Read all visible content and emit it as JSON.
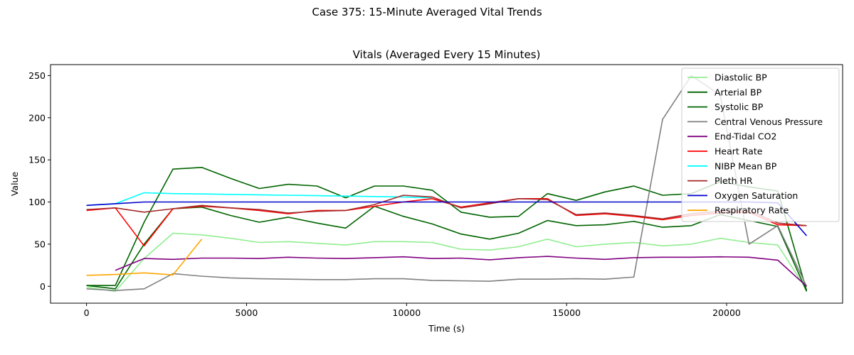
{
  "suptitle": "Case 375: 15-Minute Averaged Vital Trends",
  "chart_data": {
    "type": "line",
    "title": "Vitals (Averaged Every 15 Minutes)",
    "xlabel": "Time (s)",
    "ylabel": "Value",
    "xlim": [
      -1125,
      23625
    ],
    "ylim": [
      -20,
      263
    ],
    "xticks": [
      0,
      5000,
      10000,
      15000,
      20000
    ],
    "yticks": [
      0,
      50,
      100,
      150,
      200,
      250
    ],
    "grid": false,
    "legend": "top-right",
    "series": [
      {
        "name": "Diastolic BP",
        "color": "#90ee90",
        "x": [
          0,
          900,
          1800,
          2700,
          3600,
          4500,
          5400,
          6300,
          7200,
          8100,
          9000,
          9900,
          10800,
          11700,
          12600,
          13500,
          14400,
          15300,
          16200,
          17100,
          18000,
          18900,
          19800,
          20700,
          21600,
          22500
        ],
        "y": [
          -1,
          -6,
          33,
          63,
          61,
          57,
          52,
          53,
          51,
          49,
          53,
          53,
          52,
          44,
          43,
          47,
          56,
          47,
          50,
          52,
          48,
          50,
          57,
          52,
          49,
          -4
        ]
      },
      {
        "name": "Arterial BP",
        "color": "#006400",
        "x": [
          0,
          900,
          1800,
          2700,
          3600,
          4500,
          5400,
          6300,
          7200,
          8100,
          9000,
          9900,
          10800,
          11700,
          12600,
          13500,
          14400,
          15300,
          16200,
          17100,
          18000,
          18900,
          19800,
          20700,
          21600,
          22500
        ],
        "y": [
          1,
          -3,
          50,
          92,
          94,
          84,
          76,
          82,
          75,
          69,
          95,
          83,
          74,
          62,
          56,
          63,
          78,
          72,
          73,
          77,
          70,
          72,
          85,
          78,
          71,
          -6
        ]
      },
      {
        "name": "Systolic BP",
        "color": "#006400",
        "x": [
          0,
          900,
          1800,
          2700,
          3600,
          4500,
          5400,
          6300,
          7200,
          8100,
          9000,
          9900,
          10800,
          11700,
          12600,
          13500,
          14400,
          15300,
          16200,
          17100,
          18000,
          18900,
          19800,
          20700,
          21600,
          22500
        ],
        "y": [
          1,
          1,
          76,
          139,
          141,
          128,
          116,
          121,
          119,
          105,
          119,
          119,
          114,
          88,
          82,
          83,
          110,
          102,
          112,
          119,
          108,
          110,
          124,
          118,
          113,
          -5
        ]
      },
      {
        "name": "Central Venous Pressure",
        "color": "#808080",
        "x": [
          0,
          900,
          1800,
          2700,
          3600,
          4500,
          5400,
          6300,
          7200,
          8100,
          9000,
          9900,
          10800,
          11700,
          12600,
          13500,
          14400,
          15300,
          16200,
          17100,
          18000,
          18900,
          19800,
          20700,
          21600,
          22500
        ],
        "y": [
          -3,
          -5,
          -3,
          15,
          12,
          10,
          9,
          8.5,
          8,
          8,
          9,
          9,
          7,
          6.5,
          6,
          8.5,
          8.5,
          9,
          8.5,
          11,
          198,
          250,
          227,
          50,
          72,
          0
        ]
      },
      {
        "name": "End-Tidal CO2",
        "color": "#800080",
        "x": [
          900,
          1800,
          2700,
          3600,
          4500,
          5400,
          6300,
          7200,
          8100,
          9000,
          9900,
          10800,
          11700,
          12600,
          13500,
          14400,
          15300,
          16200,
          17100,
          18000,
          18900,
          19800,
          20700,
          21600,
          22500
        ],
        "y": [
          19,
          33,
          32,
          33.5,
          33.5,
          33,
          34.5,
          33.5,
          33,
          34,
          35,
          33,
          33.5,
          31.5,
          34,
          35.5,
          33.5,
          32,
          34,
          34.5,
          34.5,
          35,
          34.5,
          31,
          0
        ]
      },
      {
        "name": "Heart Rate",
        "color": "#ff0000",
        "x": [
          0,
          900,
          1800,
          2700,
          3600,
          4500,
          5400,
          6300,
          7200,
          8100,
          9000,
          9900,
          10800,
          11700,
          12600,
          13500,
          14400,
          15300,
          16200,
          17100,
          18000,
          18900,
          19800,
          20700,
          21600,
          22500
        ],
        "y": [
          90,
          93,
          48,
          92,
          95,
          93,
          90,
          86,
          90,
          90,
          95,
          100,
          104,
          94,
          99,
          104,
          104,
          84,
          86,
          83,
          79,
          84,
          87,
          88,
          73,
          72
        ]
      },
      {
        "name": "NIBP Mean BP",
        "color": "#00ffff",
        "x": [
          0,
          900,
          1800,
          2700,
          3600,
          4500,
          5400,
          6300,
          7200,
          8100,
          9000,
          9900,
          10800
        ],
        "y": [
          96,
          98,
          111,
          110,
          109.5,
          109,
          108.5,
          108,
          107.5,
          107,
          106.5,
          106,
          105
        ]
      },
      {
        "name": "Pleth HR",
        "color": "#a52a2a",
        "x": [
          0,
          900,
          1800,
          2700,
          3600,
          4500,
          5400,
          6300,
          7200,
          8100,
          9000,
          9900,
          10800,
          11700,
          12600,
          13500,
          14400,
          15300,
          16200,
          17100,
          18000,
          18900,
          19800,
          20700,
          21600,
          22500
        ],
        "y": [
          91,
          93,
          88,
          92,
          96,
          93,
          91,
          87,
          89,
          90,
          97,
          108,
          106,
          93,
          98,
          104,
          103,
          85,
          87,
          84,
          80,
          86,
          89,
          90,
          75,
          72
        ]
      },
      {
        "name": "Oxygen Saturation",
        "color": "#0000cd",
        "x": [
          0,
          900,
          1800,
          2700,
          3600,
          4500,
          5400,
          6300,
          7200,
          8100,
          9000,
          9900,
          10800,
          11700,
          12600,
          13500,
          14400,
          15300,
          16200,
          17100,
          18000,
          18900,
          19800,
          20700,
          21600,
          22500
        ],
        "y": [
          96,
          98,
          100,
          100,
          100,
          100,
          100,
          100,
          100,
          100,
          100,
          100,
          100,
          100,
          100,
          100,
          100,
          100,
          100,
          100,
          100,
          100,
          100,
          100,
          99,
          60
        ]
      },
      {
        "name": "Respiratory Rate",
        "color": "#ffa500",
        "x": [
          0,
          900,
          1800,
          2700,
          3600
        ],
        "y": [
          13,
          14,
          16,
          13.5,
          56
        ]
      }
    ]
  }
}
